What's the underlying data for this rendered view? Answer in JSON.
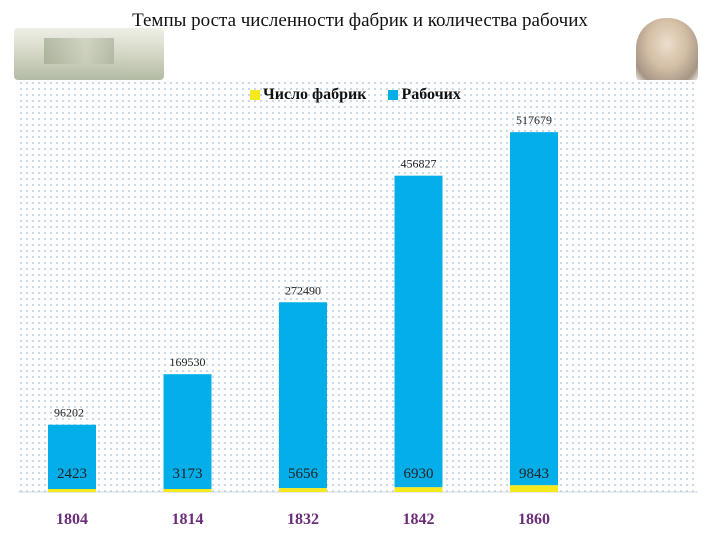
{
  "slide": {
    "title": "Темпы роста численности фабрик и количества рабочих"
  },
  "colors": {
    "factories": "#f5e81d",
    "workers": "#04aee9",
    "year_label": "#6b2d7a",
    "value_label": "#222222"
  },
  "chart_data": {
    "type": "bar",
    "categories": [
      "1804",
      "1814",
      "1832",
      "1842",
      "1860"
    ],
    "series": [
      {
        "name": "Число фабрик",
        "values": [
          2423,
          3173,
          5656,
          6930,
          9843
        ]
      },
      {
        "name": "Рабочих",
        "values": [
          96202,
          169530,
          272490,
          456827,
          517679
        ]
      }
    ],
    "ylim": [
      0,
      560000
    ],
    "legend": "top",
    "grid": false
  }
}
